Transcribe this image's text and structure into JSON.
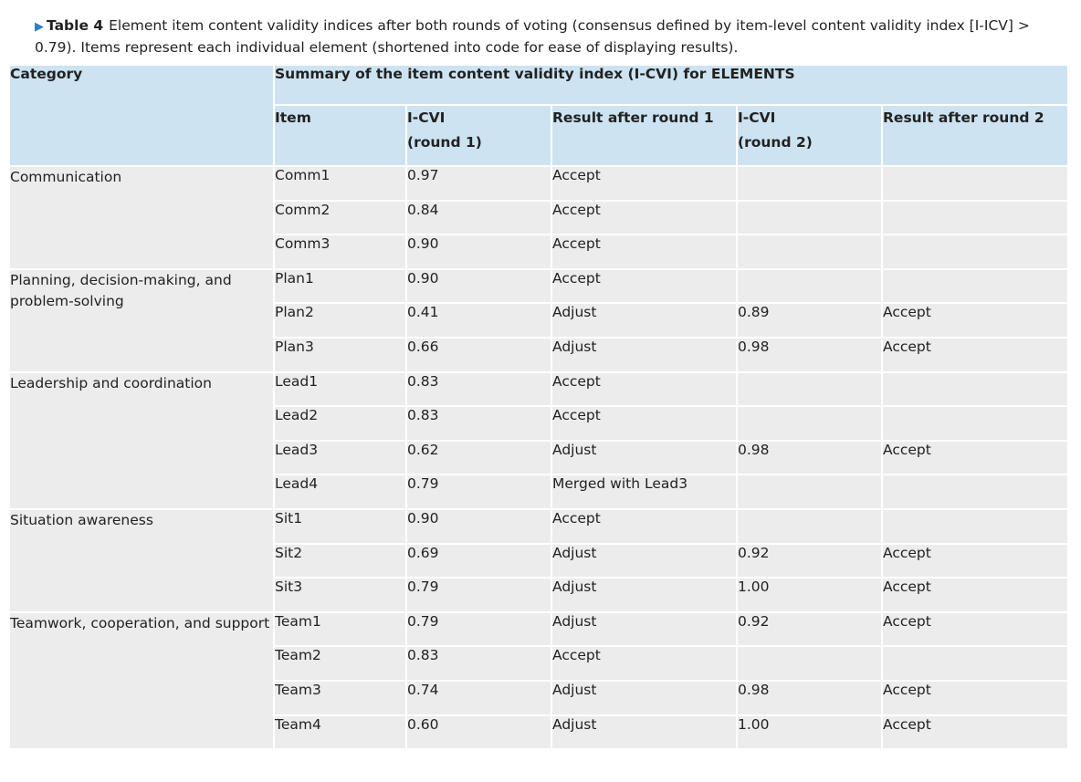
{
  "caption": {
    "label": "Table 4",
    "text": "Element item content validity indices after both rounds of voting (consensus defined by item-level content validity index [I-ICV] > 0.79). Items represent each individual element (shortened into code for ease of displaying results)."
  },
  "header": {
    "category": "Category",
    "summary": "Summary of the item content validity index (I-CVI) for ELEMENTS",
    "item": "Item",
    "icvi1_a": "I-CVI",
    "icvi1_b": "(round 1)",
    "result1": "Result after round 1",
    "icvi2_a": "I-CVI",
    "icvi2_b": "(round 2)",
    "result2": "Result after round 2"
  },
  "groups": [
    {
      "category": "Communication",
      "rows": [
        {
          "item": "Comm1",
          "cvi1": "0.97",
          "res1": "Accept",
          "cvi2": "",
          "res2": ""
        },
        {
          "item": "Comm2",
          "cvi1": "0.84",
          "res1": "Accept",
          "cvi2": "",
          "res2": ""
        },
        {
          "item": "Comm3",
          "cvi1": "0.90",
          "res1": "Accept",
          "cvi2": "",
          "res2": ""
        }
      ]
    },
    {
      "category": "Planning, decision-making, and problem-solving",
      "rows": [
        {
          "item": "Plan1",
          "cvi1": "0.90",
          "res1": "Accept",
          "cvi2": "",
          "res2": ""
        },
        {
          "item": "Plan2",
          "cvi1": "0.41",
          "res1": "Adjust",
          "cvi2": "0.89",
          "res2": "Accept"
        },
        {
          "item": "Plan3",
          "cvi1": "0.66",
          "res1": "Adjust",
          "cvi2": "0.98",
          "res2": "Accept"
        }
      ]
    },
    {
      "category": "Leadership and coordination",
      "rows": [
        {
          "item": "Lead1",
          "cvi1": "0.83",
          "res1": "Accept",
          "cvi2": "",
          "res2": ""
        },
        {
          "item": "Lead2",
          "cvi1": "0.83",
          "res1": "Accept",
          "cvi2": "",
          "res2": ""
        },
        {
          "item": "Lead3",
          "cvi1": "0.62",
          "res1": "Adjust",
          "cvi2": "0.98",
          "res2": "Accept"
        },
        {
          "item": "Lead4",
          "cvi1": "0.79",
          "res1": "Merged with Lead3",
          "cvi2": "",
          "res2": ""
        }
      ]
    },
    {
      "category": "Situation awareness",
      "rows": [
        {
          "item": "Sit1",
          "cvi1": "0.90",
          "res1": "Accept",
          "cvi2": "",
          "res2": ""
        },
        {
          "item": "Sit2",
          "cvi1": "0.69",
          "res1": "Adjust",
          "cvi2": "0.92",
          "res2": "Accept"
        },
        {
          "item": "Sit3",
          "cvi1": "0.79",
          "res1": "Adjust",
          "cvi2": "1.00",
          "res2": "Accept"
        }
      ]
    },
    {
      "category": "Teamwork, cooperation, and support",
      "rows": [
        {
          "item": "Team1",
          "cvi1": "0.79",
          "res1": "Adjust",
          "cvi2": "0.92",
          "res2": "Accept"
        },
        {
          "item": "Team2",
          "cvi1": "0.83",
          "res1": "Accept",
          "cvi2": "",
          "res2": ""
        },
        {
          "item": "Team3",
          "cvi1": "0.74",
          "res1": "Adjust",
          "cvi2": "0.98",
          "res2": "Accept"
        },
        {
          "item": "Team4",
          "cvi1": "0.60",
          "res1": "Adjust",
          "cvi2": "1.00",
          "res2": "Accept"
        }
      ]
    }
  ],
  "colors": {
    "header_bg": "#cde3f1",
    "body_bg": "#ececec",
    "accent": "#2f7fc1"
  }
}
